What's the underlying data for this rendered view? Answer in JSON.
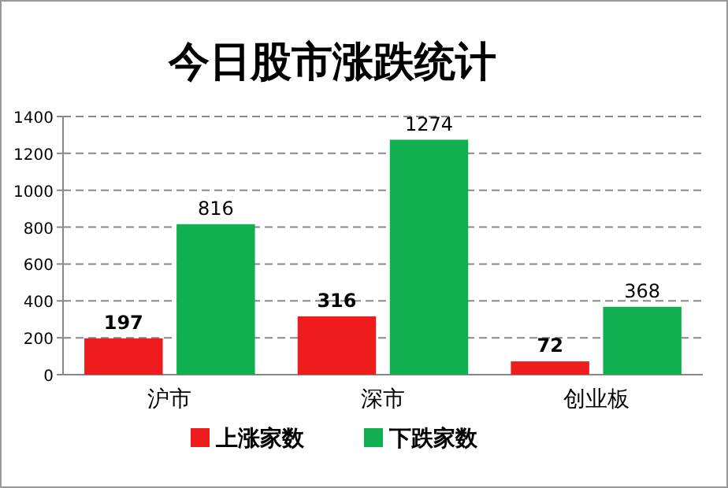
{
  "chart_data": {
    "type": "bar",
    "title": "今日股市涨跌统计",
    "categories": [
      "沪市",
      "深市",
      "创业板"
    ],
    "series": [
      {
        "name": "上涨家数",
        "color": "#ee1c1c",
        "values": [
          197,
          316,
          72
        ]
      },
      {
        "name": "下跌家数",
        "color": "#10b050",
        "values": [
          816,
          1274,
          368
        ]
      }
    ],
    "ylim": [
      0,
      1400
    ],
    "yticks": [
      0,
      200,
      400,
      600,
      800,
      1000,
      1200,
      1400
    ],
    "grid": "y",
    "legend": "bottom",
    "data_labels": true
  }
}
